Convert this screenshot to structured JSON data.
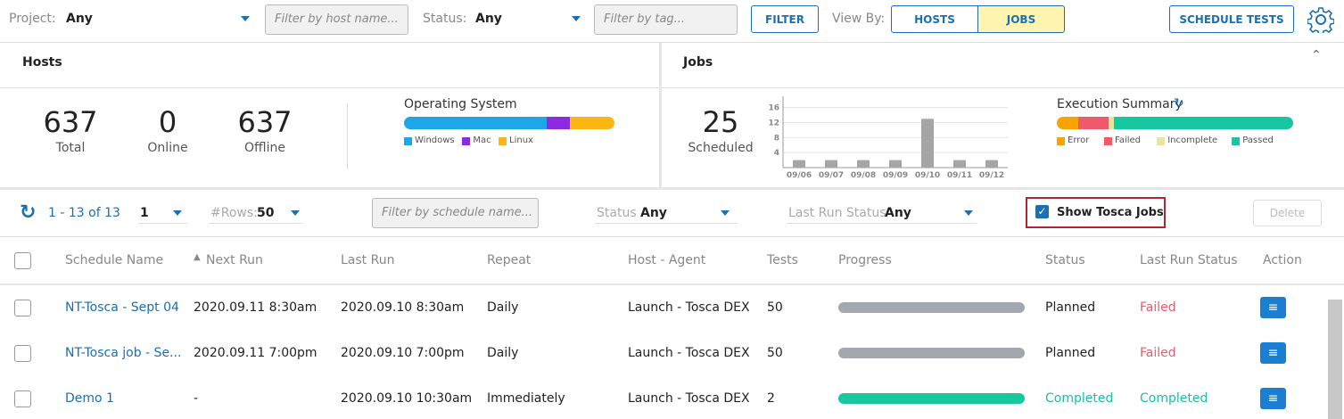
{
  "toolbar": {
    "project_label": "Project:",
    "project_value": "Any",
    "host_filter_placeholder": "Filter by host name...",
    "status_label": "Status:",
    "status_value": "Any",
    "tag_filter_placeholder": "Filter by tag...",
    "filter_button": "FILTER",
    "view_by_label": "View By:",
    "view_hosts": "HOSTS",
    "view_jobs": "JOBS",
    "schedule_button": "SCHEDULE TESTS"
  },
  "hosts": {
    "title": "Hosts",
    "stats": [
      {
        "value": 637,
        "label": "Total"
      },
      {
        "value": 0,
        "label": "Online"
      },
      {
        "value": 637,
        "label": "Offline"
      }
    ],
    "os_chart": {
      "type": "stacked_bar",
      "title": "Operating System",
      "series": [
        {
          "name": "Windows",
          "color": "#1ea7e6",
          "values": [
            68
          ]
        },
        {
          "name": "Mac",
          "color": "#8a2be2",
          "values": [
            11
          ]
        },
        {
          "name": "Linux",
          "color": "#fbb614",
          "values": [
            21
          ]
        }
      ]
    }
  },
  "jobs": {
    "title": "Jobs",
    "scheduled": {
      "value": 25,
      "label": "Scheduled"
    },
    "chart_data": {
      "type": "bar",
      "categories": [
        "09/06",
        "09/07",
        "09/08",
        "09/09",
        "09/10",
        "09/11",
        "09/12"
      ],
      "values": [
        2,
        2,
        2,
        2,
        13,
        2,
        2
      ],
      "color": "#a6a6a6",
      "ylim": [
        0,
        19
      ],
      "yticks": [
        4,
        8,
        12,
        16
      ],
      "grid": true
    },
    "execution_summary": {
      "type": "stacked_bar",
      "title": "Execution Summary",
      "series": [
        {
          "name": "Error",
          "color": "#f7a400",
          "values": [
            9
          ]
        },
        {
          "name": "Failed",
          "color": "#f0596a",
          "values": [
            13
          ]
        },
        {
          "name": "Incomplete",
          "color": "#e8e59a",
          "values": [
            2
          ]
        },
        {
          "name": "Passed",
          "color": "#17c79f",
          "values": [
            76
          ]
        }
      ]
    }
  },
  "list_toolbar": {
    "pagination": "1 - 13 of 13",
    "page": "1",
    "rows_label": "#Rows:",
    "rows_value": "50",
    "schedule_filter_placeholder": "Filter by schedule name...",
    "status_label": "Status",
    "status_value": "Any",
    "last_run_label": "Last Run Status",
    "last_run_value": "Any",
    "show_tosca": "Show Tosca Jobs",
    "delete_button": "Delete"
  },
  "table": {
    "columns": [
      "Schedule Name",
      "Next Run",
      "Last Run",
      "Repeat",
      "Host - Agent",
      "Tests",
      "Progress",
      "Status",
      "Last Run Status",
      "Action"
    ],
    "rows": [
      [
        "NT-Tosca - Sept 04",
        "2020.09.11 8:30am",
        "2020.09.10 8:30am",
        "Daily",
        "Launch - Tosca DEX",
        50,
        "Planned",
        "Failed"
      ],
      [
        "NT-Tosca job - Se...",
        "2020.09.11 7:00pm",
        "2020.09.10 7:00pm",
        "Daily",
        "Launch - Tosca DEX",
        50,
        "Planned",
        "Failed"
      ],
      [
        "Demo 1",
        "-",
        "2020.09.10 10:30am",
        "Immediately",
        "Launch - Tosca DEX",
        2,
        "Completed",
        "Completed"
      ]
    ]
  }
}
